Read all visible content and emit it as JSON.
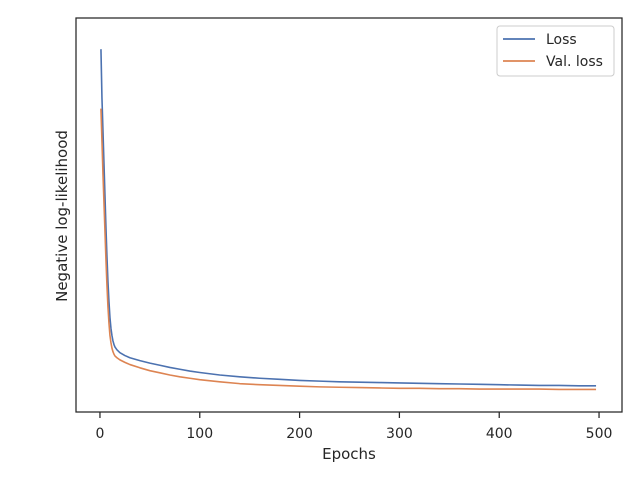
{
  "chart_data": {
    "type": "line",
    "title": "",
    "xlabel": "Epochs",
    "ylabel": "Negative log-likelihood",
    "xlim": [
      -24,
      523
    ],
    "ylim": [
      0,
      1
    ],
    "xticks": [
      0,
      100,
      200,
      300,
      400,
      500
    ],
    "yticks": [],
    "grid": false,
    "legend_position": "top-right",
    "series": [
      {
        "name": "Loss",
        "color": "#4c72b0",
        "x": [
          1,
          2,
          3,
          4,
          5,
          6,
          7,
          8,
          9,
          10,
          11,
          12,
          13,
          14,
          15,
          17,
          20,
          25,
          30,
          40,
          50,
          60,
          70,
          80,
          90,
          100,
          120,
          140,
          160,
          180,
          200,
          220,
          240,
          260,
          280,
          300,
          320,
          340,
          360,
          380,
          400,
          420,
          440,
          460,
          480,
          497
        ],
        "y": [
          0.955,
          0.82,
          0.73,
          0.64,
          0.55,
          0.46,
          0.38,
          0.31,
          0.255,
          0.21,
          0.18,
          0.16,
          0.145,
          0.135,
          0.128,
          0.12,
          0.112,
          0.104,
          0.098,
          0.09,
          0.083,
          0.077,
          0.071,
          0.066,
          0.061,
          0.057,
          0.05,
          0.045,
          0.041,
          0.038,
          0.035,
          0.033,
          0.031,
          0.03,
          0.029,
          0.028,
          0.027,
          0.026,
          0.025,
          0.024,
          0.023,
          0.022,
          0.021,
          0.021,
          0.02,
          0.02
        ]
      },
      {
        "name": "Val. loss",
        "color": "#dd8452",
        "x": [
          1,
          2,
          3,
          4,
          5,
          6,
          7,
          8,
          9,
          10,
          11,
          12,
          13,
          14,
          15,
          17,
          20,
          25,
          30,
          40,
          50,
          60,
          70,
          80,
          90,
          100,
          120,
          140,
          160,
          180,
          200,
          220,
          240,
          260,
          280,
          300,
          320,
          340,
          360,
          380,
          400,
          420,
          440,
          460,
          480,
          497
        ],
        "y": [
          0.79,
          0.7,
          0.61,
          0.53,
          0.45,
          0.37,
          0.3,
          0.24,
          0.195,
          0.16,
          0.14,
          0.125,
          0.115,
          0.108,
          0.103,
          0.098,
          0.092,
          0.085,
          0.079,
          0.07,
          0.062,
          0.056,
          0.05,
          0.045,
          0.041,
          0.037,
          0.031,
          0.026,
          0.023,
          0.021,
          0.019,
          0.017,
          0.016,
          0.015,
          0.014,
          0.013,
          0.013,
          0.012,
          0.012,
          0.011,
          0.011,
          0.011,
          0.011,
          0.01,
          0.01,
          0.01
        ]
      }
    ]
  }
}
